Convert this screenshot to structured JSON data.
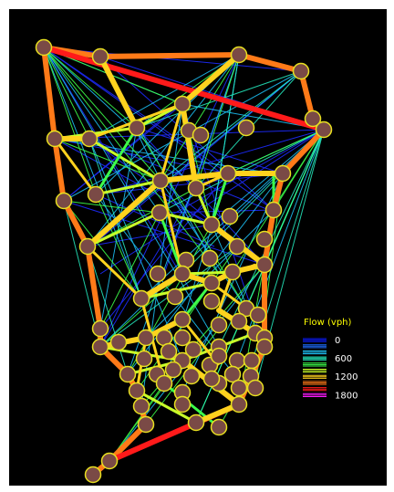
{
  "legend": {
    "title": "Flow (vph)",
    "entries": [
      {
        "label": "0",
        "color": "#0a1aff"
      },
      {
        "label": "",
        "color": "#1d6cff"
      },
      {
        "label": "",
        "color": "#1ec8ff"
      },
      {
        "label": "600",
        "color": "#28ffd0"
      },
      {
        "label": "",
        "color": "#3dff4a"
      },
      {
        "label": "",
        "color": "#c8ff2a"
      },
      {
        "label": "1200",
        "color": "#ffd21e"
      },
      {
        "label": "",
        "color": "#ff7a18"
      },
      {
        "label": "",
        "color": "#ff1a1a"
      },
      {
        "label": "1800",
        "color": "#ff1aff"
      }
    ]
  },
  "colors": {
    "background": "#000000",
    "node_fill": "#7a4a46",
    "node_stroke": "#e8e020",
    "legend_text": "#ffff00",
    "legend_value_text": "#ffffff"
  }
}
